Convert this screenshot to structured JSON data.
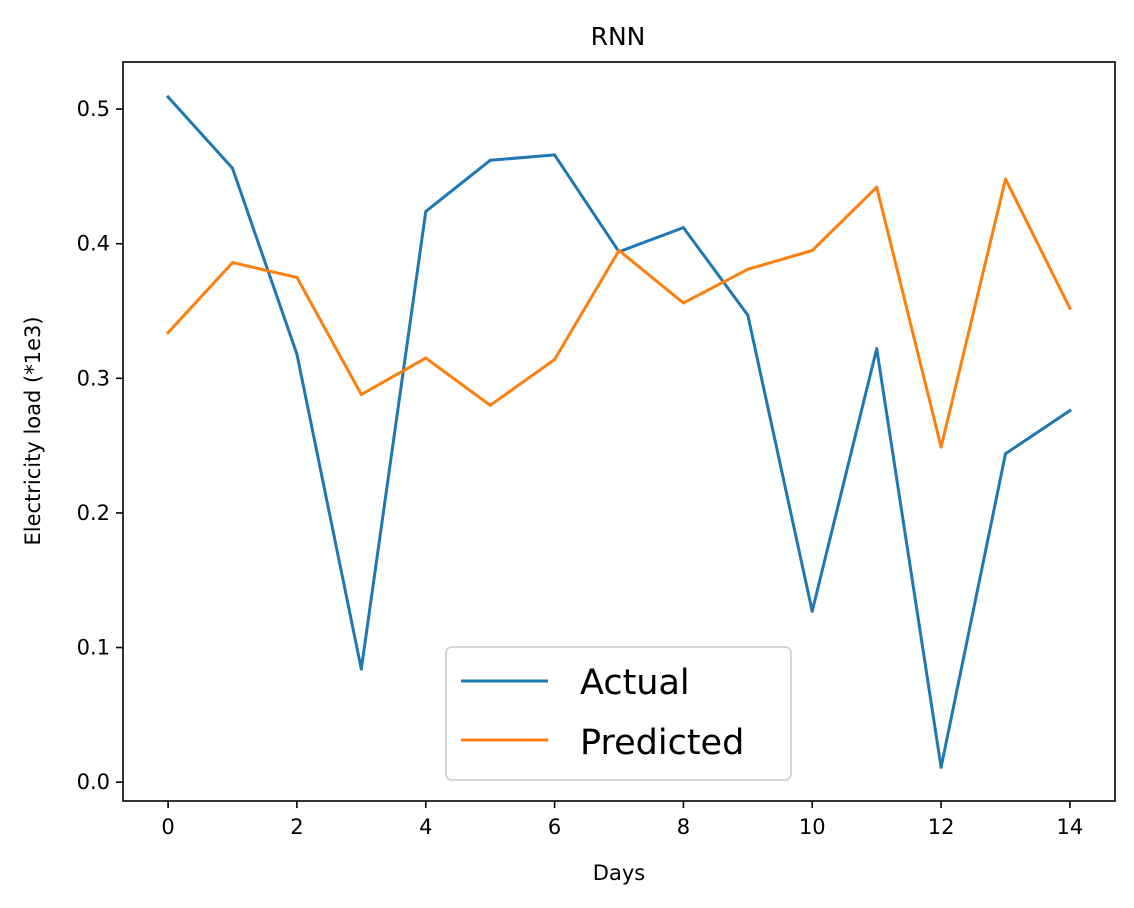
{
  "chart_data": {
    "type": "line",
    "title": "RNN",
    "xlabel": "Days",
    "ylabel": "Electricity load (*1e3)",
    "x": [
      0,
      1,
      2,
      3,
      4,
      5,
      6,
      7,
      8,
      9,
      10,
      11,
      12,
      13,
      14
    ],
    "xlim": [
      -0.7,
      14.7
    ],
    "ylim": [
      -0.014,
      0.535
    ],
    "xticks": [
      0,
      2,
      4,
      6,
      8,
      10,
      12,
      14
    ],
    "xtick_labels": [
      "0",
      "2",
      "4",
      "6",
      "8",
      "10",
      "12",
      "14"
    ],
    "yticks": [
      0.0,
      0.1,
      0.2,
      0.3,
      0.4,
      0.5
    ],
    "ytick_labels": [
      "0.0",
      "0.1",
      "0.2",
      "0.3",
      "0.4",
      "0.5"
    ],
    "grid": false,
    "legend_position": "lower-center",
    "series": [
      {
        "name": "Actual",
        "color": "#1f77b4",
        "values": [
          0.509,
          0.456,
          0.318,
          0.084,
          0.424,
          0.462,
          0.466,
          0.394,
          0.412,
          0.347,
          0.127,
          0.322,
          0.011,
          0.244,
          0.276
        ]
      },
      {
        "name": "Predicted",
        "color": "#ff7f0e",
        "values": [
          0.334,
          0.386,
          0.375,
          0.288,
          0.315,
          0.28,
          0.314,
          0.395,
          0.356,
          0.381,
          0.395,
          0.442,
          0.249,
          0.448,
          0.352
        ]
      }
    ]
  }
}
